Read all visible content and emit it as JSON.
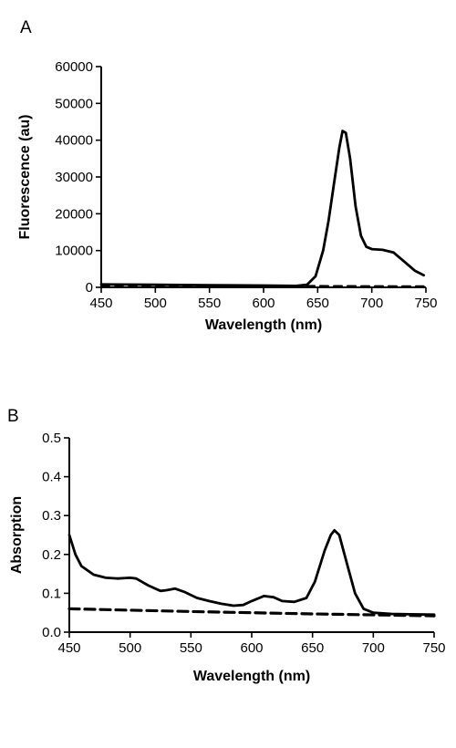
{
  "chart_data": [
    {
      "panel_label": "A",
      "type": "line",
      "xlabel": "Wavelength (nm)",
      "ylabel": "Fluorescence (au)",
      "xlim": [
        450,
        750
      ],
      "ylim": [
        0,
        60000
      ],
      "xticks": [
        450,
        500,
        550,
        600,
        650,
        700,
        750
      ],
      "yticks": [
        0,
        10000,
        20000,
        30000,
        40000,
        50000,
        60000
      ],
      "grid": false,
      "legend": "none",
      "series": [
        {
          "style": "solid",
          "color": "#000000",
          "points": [
            [
              450,
              800
            ],
            [
              500,
              700
            ],
            [
              550,
              600
            ],
            [
              600,
              500
            ],
            [
              630,
              400
            ],
            [
              640,
              700
            ],
            [
              648,
              3000
            ],
            [
              655,
              10000
            ],
            [
              660,
              18000
            ],
            [
              665,
              28000
            ],
            [
              670,
              38000
            ],
            [
              673,
              42500
            ],
            [
              676,
              42000
            ],
            [
              680,
              35000
            ],
            [
              685,
              22000
            ],
            [
              690,
              14000
            ],
            [
              695,
              11000
            ],
            [
              700,
              10400
            ],
            [
              710,
              10200
            ],
            [
              720,
              9500
            ],
            [
              730,
              7000
            ],
            [
              740,
              4500
            ],
            [
              748,
              3300
            ]
          ]
        },
        {
          "style": "dashed",
          "color": "#555555",
          "points": [
            [
              450,
              500
            ],
            [
              550,
              450
            ],
            [
              650,
              400
            ],
            [
              748,
              300
            ]
          ]
        }
      ]
    },
    {
      "panel_label": "B",
      "type": "line",
      "xlabel": "Wavelength (nm)",
      "ylabel": "Absorption",
      "xlim": [
        450,
        750
      ],
      "ylim": [
        0.0,
        0.5
      ],
      "xticks": [
        450,
        500,
        550,
        600,
        650,
        700,
        750
      ],
      "yticks": [
        0.0,
        0.1,
        0.2,
        0.3,
        0.4,
        0.5
      ],
      "ytick_decimals": 1,
      "grid": false,
      "legend": "none",
      "series": [
        {
          "style": "solid",
          "color": "#000000",
          "points": [
            [
              450,
              0.25
            ],
            [
              455,
              0.2
            ],
            [
              460,
              0.17
            ],
            [
              470,
              0.148
            ],
            [
              480,
              0.14
            ],
            [
              490,
              0.138
            ],
            [
              500,
              0.14
            ],
            [
              505,
              0.138
            ],
            [
              515,
              0.12
            ],
            [
              525,
              0.106
            ],
            [
              530,
              0.108
            ],
            [
              537,
              0.112
            ],
            [
              545,
              0.103
            ],
            [
              555,
              0.088
            ],
            [
              565,
              0.08
            ],
            [
              575,
              0.073
            ],
            [
              585,
              0.068
            ],
            [
              593,
              0.07
            ],
            [
              600,
              0.08
            ],
            [
              610,
              0.093
            ],
            [
              618,
              0.09
            ],
            [
              625,
              0.08
            ],
            [
              635,
              0.078
            ],
            [
              645,
              0.088
            ],
            [
              652,
              0.13
            ],
            [
              660,
              0.21
            ],
            [
              665,
              0.25
            ],
            [
              668,
              0.262
            ],
            [
              672,
              0.25
            ],
            [
              678,
              0.18
            ],
            [
              685,
              0.1
            ],
            [
              692,
              0.06
            ],
            [
              700,
              0.05
            ],
            [
              715,
              0.047
            ],
            [
              730,
              0.046
            ],
            [
              750,
              0.045
            ]
          ]
        },
        {
          "style": "dashed",
          "color": "#000000",
          "points": [
            [
              450,
              0.06
            ],
            [
              550,
              0.053
            ],
            [
              650,
              0.047
            ],
            [
              750,
              0.042
            ]
          ]
        }
      ]
    }
  ]
}
